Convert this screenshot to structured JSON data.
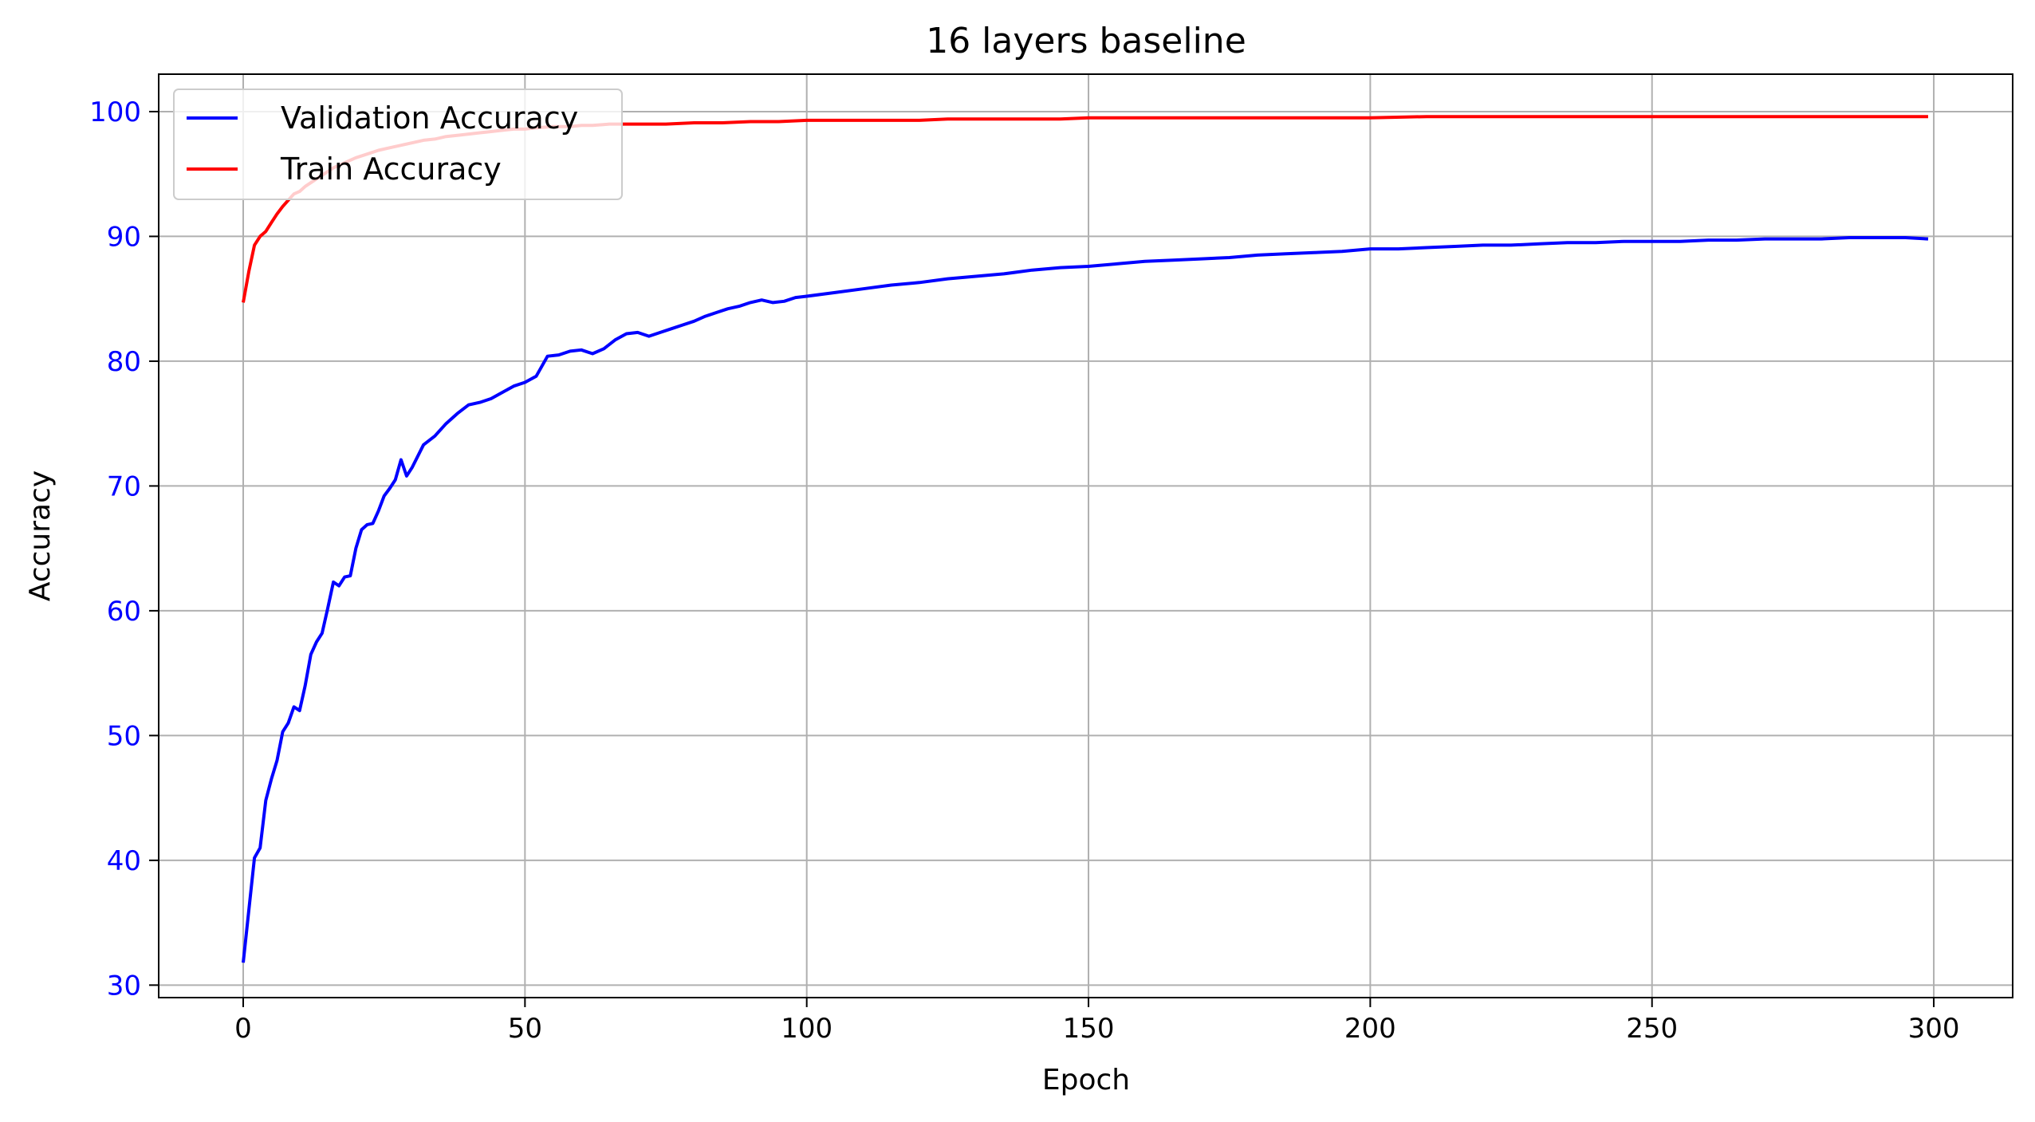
{
  "chart_data": {
    "type": "line",
    "title": "16 layers baseline",
    "xlabel": "Epoch",
    "ylabel": "Accuracy",
    "xlim": [
      -15,
      314
    ],
    "ylim": [
      29,
      103
    ],
    "xticks": [
      0,
      50,
      100,
      150,
      200,
      250,
      300
    ],
    "yticks": [
      30,
      40,
      50,
      60,
      70,
      80,
      90,
      100
    ],
    "grid": true,
    "legend_position": "upper-left",
    "tick_color_y": "#0000ff",
    "ylabel_color": "#0000ff",
    "series": [
      {
        "name": "Validation Accuracy",
        "color": "#0000ff",
        "x": [
          0,
          2,
          3,
          4,
          5,
          6,
          7,
          8,
          9,
          10,
          11,
          12,
          13,
          14,
          15,
          16,
          17,
          18,
          19,
          20,
          21,
          22,
          23,
          24,
          25,
          26,
          27,
          28,
          29,
          30,
          32,
          34,
          36,
          38,
          40,
          42,
          44,
          46,
          48,
          50,
          52,
          54,
          56,
          58,
          60,
          62,
          64,
          66,
          68,
          70,
          72,
          74,
          76,
          78,
          80,
          82,
          84,
          86,
          88,
          90,
          92,
          94,
          96,
          98,
          100,
          105,
          110,
          115,
          120,
          125,
          130,
          135,
          140,
          145,
          150,
          155,
          160,
          165,
          170,
          175,
          180,
          185,
          190,
          195,
          200,
          205,
          210,
          215,
          220,
          225,
          230,
          235,
          240,
          245,
          250,
          255,
          260,
          265,
          270,
          275,
          280,
          285,
          290,
          295,
          299
        ],
        "values": [
          31.8,
          40.2,
          41.0,
          44.8,
          46.5,
          48.0,
          50.3,
          51.0,
          52.3,
          52.0,
          54.0,
          56.5,
          57.5,
          58.2,
          60.2,
          62.3,
          62.0,
          62.7,
          62.8,
          65.0,
          66.5,
          66.9,
          67.0,
          68.0,
          69.2,
          69.8,
          70.5,
          72.1,
          70.8,
          71.5,
          73.3,
          74.0,
          75.0,
          75.8,
          76.5,
          76.7,
          77.0,
          77.5,
          78.0,
          78.3,
          78.8,
          80.4,
          80.5,
          80.8,
          80.9,
          80.6,
          81.0,
          81.7,
          82.2,
          82.3,
          82.0,
          82.3,
          82.6,
          82.9,
          83.2,
          83.6,
          83.9,
          84.2,
          84.4,
          84.7,
          84.9,
          84.7,
          84.8,
          85.1,
          85.2,
          85.5,
          85.8,
          86.1,
          86.3,
          86.6,
          86.8,
          87.0,
          87.3,
          87.5,
          87.6,
          87.8,
          88.0,
          88.1,
          88.2,
          88.3,
          88.5,
          88.6,
          88.7,
          88.8,
          89.0,
          89.0,
          89.1,
          89.2,
          89.3,
          89.3,
          89.4,
          89.5,
          89.5,
          89.6,
          89.6,
          89.6,
          89.7,
          89.7,
          89.8,
          89.8,
          89.8,
          89.9,
          89.9,
          89.9,
          89.8
        ]
      },
      {
        "name": "Train Accuracy",
        "color": "#ff0000",
        "x": [
          0,
          1,
          2,
          3,
          4,
          5,
          6,
          7,
          8,
          9,
          10,
          11,
          12,
          14,
          16,
          18,
          20,
          22,
          24,
          26,
          28,
          30,
          32,
          34,
          36,
          38,
          40,
          42,
          44,
          46,
          48,
          50,
          52,
          55,
          58,
          60,
          62,
          65,
          68,
          70,
          72,
          75,
          80,
          85,
          90,
          95,
          100,
          105,
          110,
          115,
          120,
          125,
          130,
          135,
          140,
          145,
          150,
          160,
          170,
          180,
          190,
          200,
          210,
          220,
          230,
          240,
          250,
          260,
          270,
          280,
          290,
          299
        ],
        "values": [
          84.7,
          87.2,
          89.3,
          90.0,
          90.4,
          91.1,
          91.8,
          92.4,
          92.9,
          93.4,
          93.6,
          94.0,
          94.3,
          94.9,
          95.5,
          95.9,
          96.3,
          96.6,
          96.9,
          97.1,
          97.3,
          97.5,
          97.7,
          97.8,
          98.0,
          98.1,
          98.2,
          98.3,
          98.4,
          98.5,
          98.6,
          98.6,
          98.7,
          98.8,
          98.8,
          98.9,
          98.9,
          99.0,
          99.0,
          99.0,
          99.0,
          99.0,
          99.1,
          99.1,
          99.2,
          99.2,
          99.3,
          99.3,
          99.3,
          99.3,
          99.3,
          99.4,
          99.4,
          99.4,
          99.4,
          99.4,
          99.5,
          99.5,
          99.5,
          99.5,
          99.5,
          99.5,
          99.6,
          99.6,
          99.6,
          99.6,
          99.6,
          99.6,
          99.6,
          99.6,
          99.6,
          99.6
        ]
      }
    ]
  }
}
